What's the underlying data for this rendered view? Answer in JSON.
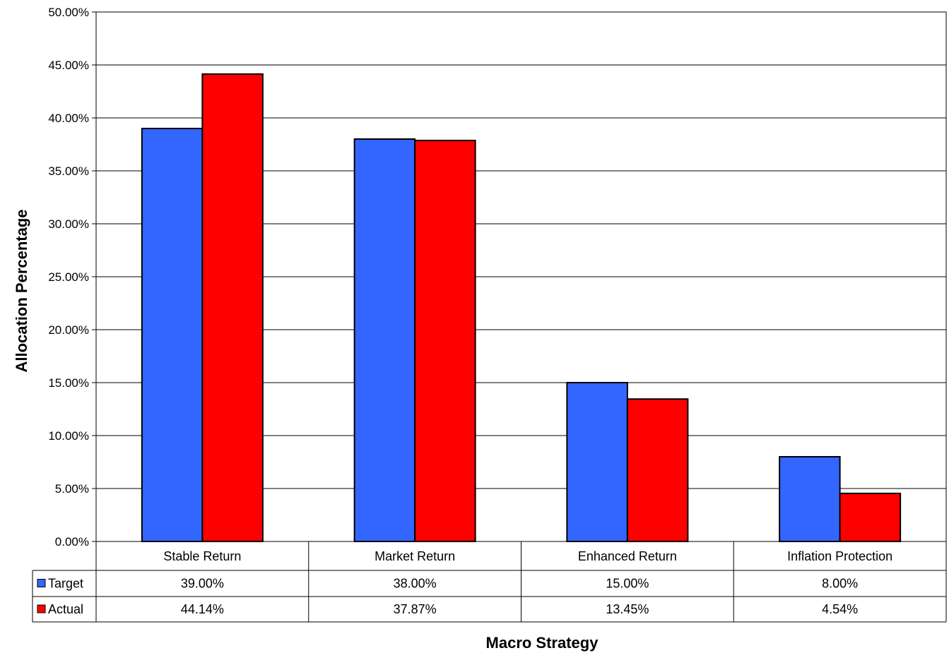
{
  "chart_data": {
    "type": "bar",
    "categories": [
      "Stable Return",
      "Market Return",
      "Enhanced Return",
      "Inflation Protection"
    ],
    "series": [
      {
        "name": "Target",
        "values": [
          39.0,
          38.0,
          15.0,
          8.0
        ],
        "color": "#3366FF"
      },
      {
        "name": "Actual",
        "values": [
          44.14,
          37.87,
          13.45,
          4.54
        ],
        "color": "#FF0000"
      }
    ],
    "table": {
      "rows": [
        {
          "label": "Target",
          "values": [
            "39.00%",
            "38.00%",
            "15.00%",
            "8.00%"
          ]
        },
        {
          "label": "Actual",
          "values": [
            "44.14%",
            "37.87%",
            "13.45%",
            "4.54%"
          ]
        }
      ]
    },
    "y_ticks": [
      "0.00%",
      "5.00%",
      "10.00%",
      "15.00%",
      "20.00%",
      "25.00%",
      "30.00%",
      "35.00%",
      "40.00%",
      "45.00%",
      "50.00%"
    ],
    "ylim": [
      0,
      50
    ],
    "ytick_step": 5,
    "xlabel": "Macro Strategy",
    "ylabel": "Allocation Percentage",
    "grid": true,
    "legend": "data-table"
  }
}
